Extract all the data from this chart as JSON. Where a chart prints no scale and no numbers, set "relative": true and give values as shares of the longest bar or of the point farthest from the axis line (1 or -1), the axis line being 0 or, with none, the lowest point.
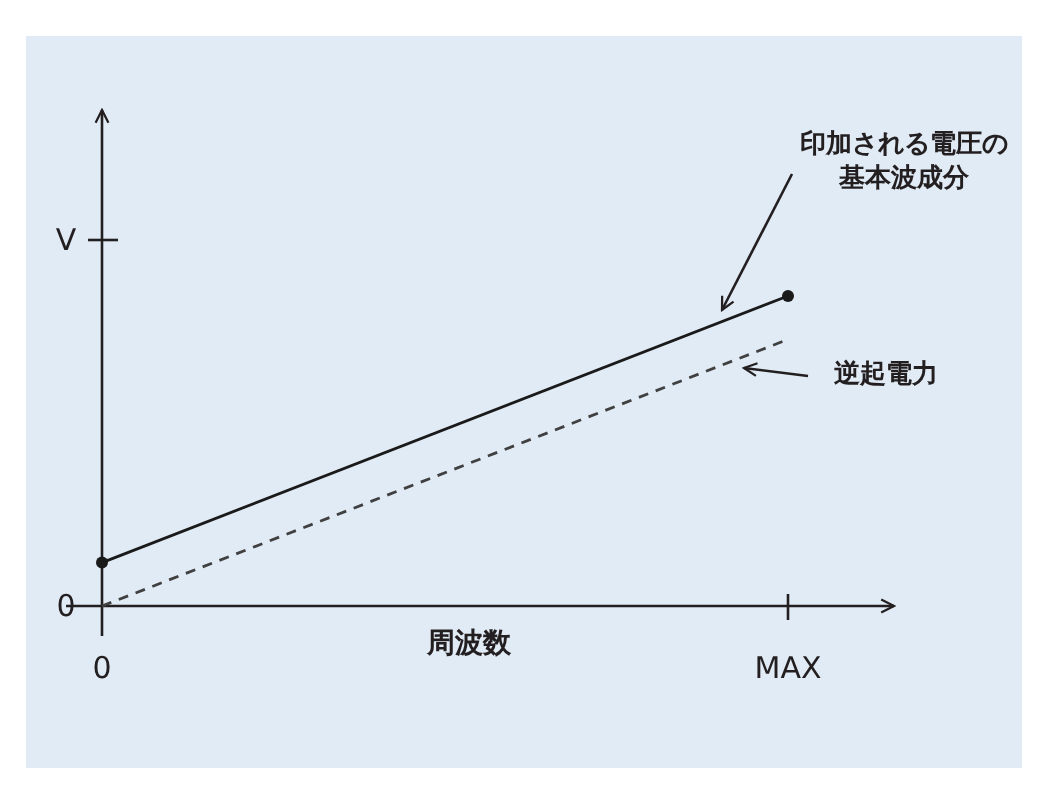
{
  "chart_data": {
    "type": "line",
    "xlabel": "周波数",
    "relative": true,
    "categories": [
      "0",
      "MAX"
    ],
    "series": [
      {
        "color": "#1a1a1a",
        "values": [
          0.14,
          1
        ],
        "marker": "circle",
        "line_style": "solid"
      },
      {
        "color": "#404040",
        "values": [
          0,
          0.86
        ],
        "marker": "none",
        "line_style": "dashed"
      }
    ],
    "annotations": [
      "印加される電圧の基本波成分",
      "逆起電力",
      "V",
      "0"
    ]
  }
}
